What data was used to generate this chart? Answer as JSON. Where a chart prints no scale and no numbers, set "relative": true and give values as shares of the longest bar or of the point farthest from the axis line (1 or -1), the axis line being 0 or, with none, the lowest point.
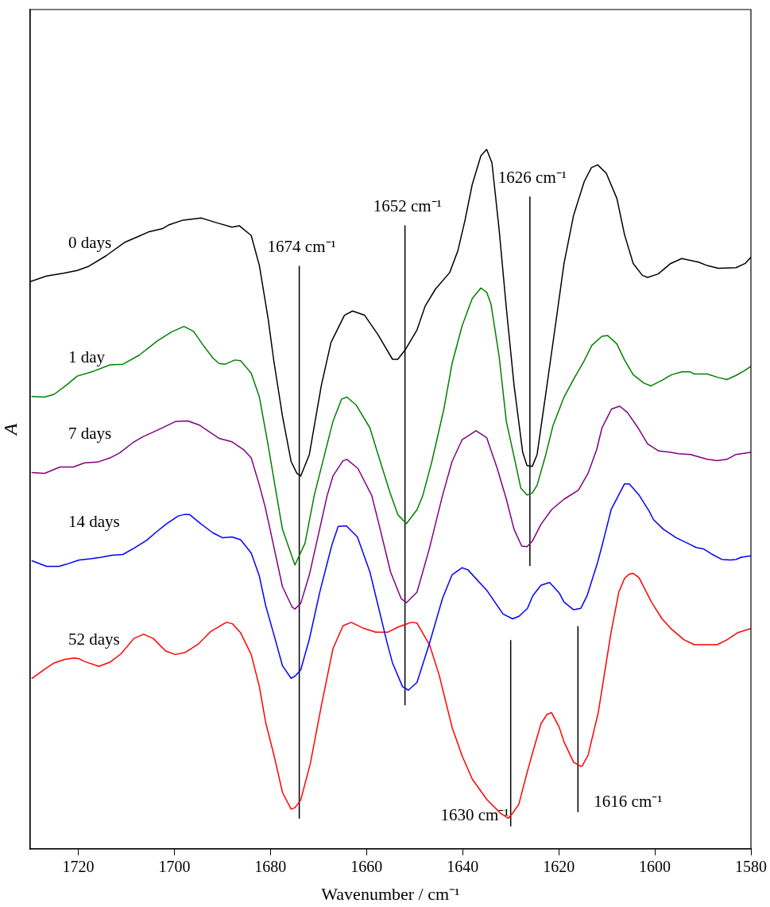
{
  "chart_data": {
    "type": "line",
    "relative": true,
    "xlabel": "Wavenumber / cm⁻¹",
    "ylabel": "A",
    "xlim": [
      1730,
      1580
    ],
    "xticks": [
      1720,
      1700,
      1680,
      1660,
      1640,
      1620,
      1600,
      1580
    ],
    "grid": false,
    "legend": false,
    "marker": "none",
    "annotations": [
      {
        "text": "1674 cm⁻¹",
        "x": 1674,
        "y": 0.833
      },
      {
        "text": "1652 cm⁻¹",
        "x": 1652,
        "y": 0.891
      },
      {
        "text": "1626 cm⁻¹",
        "x": 1626,
        "y": 0.932
      },
      {
        "text": "1630 cm⁻¹",
        "x": 1630,
        "y": 0.033
      },
      {
        "text": "1616 cm⁻¹",
        "x": 1616,
        "y": 0.053
      }
    ],
    "series": [
      {
        "name": "0 days",
        "color": "#000000",
        "x": [
          1730,
          1726.6,
          1723.1,
          1720.2,
          1717.8,
          1714.2,
          1710.4,
          1707.7,
          1705.4,
          1702.4,
          1701.2,
          1698.2,
          1694.4,
          1691.1,
          1688.0,
          1686.5,
          1684.0,
          1682.3,
          1680.5,
          1679.3,
          1677.5,
          1675.7,
          1674.5,
          1673.7,
          1671.9,
          1669.4,
          1667.4,
          1664.6,
          1662.9,
          1660.4,
          1657.6,
          1654.6,
          1653.5,
          1652.0,
          1649.5,
          1647.8,
          1645.7,
          1642.7,
          1641.0,
          1639.5,
          1638.0,
          1636.2,
          1635.0,
          1633.9,
          1632.4,
          1630.9,
          1629.3,
          1627.5,
          1626.6,
          1625.5,
          1624.5,
          1622.8,
          1620.7,
          1618.9,
          1616.9,
          1614.7,
          1613.2,
          1611.9,
          1610.1,
          1607.9,
          1606.3,
          1604.5,
          1602.6,
          1601.5,
          1599.3,
          1596.7,
          1594.4,
          1590.9,
          1589.1,
          1586.8,
          1583.1,
          1581.2,
          1580
        ],
        "values": [
          0.811,
          0.819,
          0.823,
          0.827,
          0.833,
          0.848,
          0.867,
          0.875,
          0.882,
          0.887,
          0.892,
          0.899,
          0.902,
          0.895,
          0.889,
          0.891,
          0.877,
          0.834,
          0.759,
          0.698,
          0.619,
          0.554,
          0.537,
          0.533,
          0.564,
          0.663,
          0.724,
          0.763,
          0.769,
          0.763,
          0.735,
          0.7,
          0.7,
          0.713,
          0.742,
          0.776,
          0.8,
          0.824,
          0.855,
          0.899,
          0.95,
          0.991,
          1.0,
          0.981,
          0.885,
          0.773,
          0.663,
          0.567,
          0.548,
          0.547,
          0.564,
          0.646,
          0.748,
          0.837,
          0.906,
          0.954,
          0.974,
          0.978,
          0.966,
          0.93,
          0.878,
          0.837,
          0.82,
          0.817,
          0.822,
          0.837,
          0.844,
          0.839,
          0.834,
          0.83,
          0.831,
          0.837,
          0.846
        ]
      },
      {
        "name": "1 day",
        "color": "#008000",
        "x": [
          1729.6,
          1727.0,
          1725.0,
          1722.5,
          1720.2,
          1717.2,
          1713.4,
          1710.7,
          1707.3,
          1703.6,
          1700.6,
          1698.0,
          1696.0,
          1694.2,
          1692.0,
          1690.7,
          1689.4,
          1687.4,
          1686.2,
          1684.0,
          1682.3,
          1680.5,
          1678.8,
          1677.5,
          1674.9,
          1672.8,
          1670.9,
          1667.0,
          1665.2,
          1664.1,
          1662.2,
          1659.3,
          1657.6,
          1655.1,
          1653.5,
          1651.7,
          1649.5,
          1648.3,
          1646.4,
          1643.9,
          1642.2,
          1640.1,
          1638.0,
          1636.2,
          1635.0,
          1634.1,
          1632.4,
          1630.9,
          1629.3,
          1627.9,
          1626.6,
          1625.5,
          1624.5,
          1622.8,
          1621.2,
          1618.9,
          1616.7,
          1614.7,
          1613.1,
          1611.0,
          1609.8,
          1607.9,
          1606.3,
          1604.5,
          1602.3,
          1600.8,
          1598.5,
          1596.5,
          1594.4,
          1592.6,
          1591.8,
          1589.1,
          1586.8,
          1585.0,
          1583.1,
          1581.5,
          1580
        ],
        "values": [
          0.647,
          0.646,
          0.65,
          0.663,
          0.676,
          0.682,
          0.692,
          0.693,
          0.706,
          0.726,
          0.739,
          0.747,
          0.74,
          0.722,
          0.702,
          0.694,
          0.693,
          0.699,
          0.698,
          0.68,
          0.646,
          0.578,
          0.509,
          0.457,
          0.406,
          0.437,
          0.505,
          0.611,
          0.643,
          0.646,
          0.635,
          0.602,
          0.564,
          0.509,
          0.478,
          0.465,
          0.485,
          0.505,
          0.554,
          0.629,
          0.694,
          0.748,
          0.787,
          0.802,
          0.796,
          0.779,
          0.704,
          0.611,
          0.561,
          0.516,
          0.506,
          0.509,
          0.52,
          0.561,
          0.605,
          0.646,
          0.674,
          0.698,
          0.72,
          0.733,
          0.734,
          0.722,
          0.699,
          0.678,
          0.666,
          0.662,
          0.67,
          0.678,
          0.682,
          0.682,
          0.679,
          0.679,
          0.674,
          0.671,
          0.677,
          0.683,
          0.69
        ]
      },
      {
        "name": "7 days",
        "color": "#800080",
        "x": [
          1729.6,
          1727.0,
          1723.8,
          1721.0,
          1718.7,
          1716.0,
          1713.4,
          1711.4,
          1708.6,
          1706.6,
          1702.8,
          1699.8,
          1697.2,
          1694.8,
          1690.7,
          1688.0,
          1685.6,
          1684.0,
          1682.3,
          1681.1,
          1680.3,
          1677.5,
          1675.5,
          1674.9,
          1673.7,
          1671.9,
          1668.2,
          1667.0,
          1664.9,
          1664.1,
          1661.8,
          1658.9,
          1657.3,
          1655.0,
          1652.8,
          1651.7,
          1649.5,
          1646.9,
          1644.2,
          1642.2,
          1640.1,
          1637.2,
          1635.0,
          1632.8,
          1630.9,
          1629.3,
          1627.7,
          1626.6,
          1625.5,
          1623.7,
          1621.5,
          1618.9,
          1615.9,
          1613.9,
          1612.1,
          1611.0,
          1609.0,
          1607.3,
          1605.7,
          1603.5,
          1601.5,
          1599.2,
          1596.7,
          1595.1,
          1592.6,
          1589.1,
          1587.0,
          1585.0,
          1583.1,
          1580
        ],
        "values": [
          0.538,
          0.537,
          0.546,
          0.546,
          0.552,
          0.553,
          0.559,
          0.566,
          0.581,
          0.589,
          0.601,
          0.611,
          0.612,
          0.606,
          0.587,
          0.582,
          0.571,
          0.559,
          0.52,
          0.489,
          0.464,
          0.375,
          0.346,
          0.343,
          0.351,
          0.392,
          0.505,
          0.533,
          0.555,
          0.557,
          0.544,
          0.505,
          0.461,
          0.396,
          0.358,
          0.352,
          0.367,
          0.43,
          0.505,
          0.554,
          0.585,
          0.598,
          0.588,
          0.544,
          0.5,
          0.457,
          0.433,
          0.432,
          0.44,
          0.464,
          0.485,
          0.5,
          0.513,
          0.537,
          0.571,
          0.602,
          0.629,
          0.633,
          0.624,
          0.602,
          0.579,
          0.569,
          0.567,
          0.565,
          0.564,
          0.557,
          0.555,
          0.557,
          0.564,
          0.567
        ]
      },
      {
        "name": "14 days",
        "color": "#0000ff",
        "x": [
          1729.6,
          1726.6,
          1724.0,
          1722.5,
          1719.8,
          1717.2,
          1715.2,
          1713.0,
          1710.7,
          1708.4,
          1705.8,
          1703.6,
          1701.6,
          1699.2,
          1698.0,
          1696.8,
          1694.5,
          1692.0,
          1690.0,
          1688.0,
          1686.2,
          1684.0,
          1682.3,
          1681.0,
          1679.3,
          1677.5,
          1675.7,
          1674.9,
          1673.7,
          1671.9,
          1669.7,
          1667.2,
          1665.9,
          1664.2,
          1661.9,
          1659.3,
          1657.6,
          1655.8,
          1654.6,
          1652.5,
          1651.3,
          1649.5,
          1646.9,
          1644.2,
          1642.2,
          1640.1,
          1638.9,
          1635.0,
          1631.6,
          1629.6,
          1628.2,
          1626.5,
          1625.4,
          1623.7,
          1621.9,
          1619.9,
          1618.9,
          1616.9,
          1615.4,
          1614.1,
          1611.9,
          1611.0,
          1609.1,
          1607.6,
          1606.3,
          1605.3,
          1603.3,
          1601.2,
          1600.3,
          1598.2,
          1595.6,
          1592.6,
          1591.4,
          1589.9,
          1588.0,
          1586.1,
          1584.3,
          1583.1,
          1582.0,
          1580
        ],
        "values": [
          0.412,
          0.404,
          0.404,
          0.407,
          0.413,
          0.415,
          0.417,
          0.42,
          0.421,
          0.43,
          0.441,
          0.454,
          0.465,
          0.476,
          0.478,
          0.478,
          0.465,
          0.452,
          0.445,
          0.446,
          0.442,
          0.423,
          0.39,
          0.348,
          0.307,
          0.262,
          0.244,
          0.247,
          0.256,
          0.3,
          0.368,
          0.435,
          0.461,
          0.462,
          0.446,
          0.396,
          0.348,
          0.297,
          0.266,
          0.232,
          0.227,
          0.238,
          0.294,
          0.358,
          0.392,
          0.402,
          0.399,
          0.37,
          0.336,
          0.329,
          0.333,
          0.344,
          0.362,
          0.377,
          0.381,
          0.366,
          0.353,
          0.342,
          0.344,
          0.362,
          0.41,
          0.433,
          0.485,
          0.505,
          0.522,
          0.522,
          0.506,
          0.483,
          0.471,
          0.457,
          0.445,
          0.435,
          0.431,
          0.429,
          0.421,
          0.414,
          0.413,
          0.414,
          0.417,
          0.419
        ]
      },
      {
        "name": "52 days",
        "color": "#ff0000",
        "x": [
          1729.6,
          1727.0,
          1725.0,
          1722.8,
          1720.8,
          1719.8,
          1718.7,
          1715.7,
          1713.4,
          1711.1,
          1708.4,
          1706.4,
          1704.4,
          1701.8,
          1699.8,
          1697.7,
          1695.0,
          1692.4,
          1689.2,
          1687.9,
          1686.2,
          1684.0,
          1682.3,
          1681.0,
          1679.3,
          1677.5,
          1675.7,
          1674.9,
          1673.7,
          1671.7,
          1669.4,
          1667.0,
          1664.9,
          1663.2,
          1660.8,
          1658.1,
          1655.5,
          1653.5,
          1650.7,
          1649.5,
          1646.9,
          1644.9,
          1642.2,
          1640.1,
          1638.0,
          1635.0,
          1632.1,
          1630.5,
          1629.6,
          1628.3,
          1626.6,
          1625.5,
          1623.7,
          1622.5,
          1621.5,
          1619.9,
          1618.9,
          1616.9,
          1615.4,
          1615.1,
          1613.9,
          1611.8,
          1609.1,
          1607.5,
          1606.3,
          1605.3,
          1604.5,
          1603.3,
          1600.7,
          1598.5,
          1596.5,
          1593.9,
          1591.8,
          1587.0,
          1585.0,
          1582.8,
          1580
        ],
        "values": [
          0.244,
          0.257,
          0.266,
          0.271,
          0.273,
          0.272,
          0.268,
          0.261,
          0.267,
          0.279,
          0.301,
          0.307,
          0.301,
          0.283,
          0.278,
          0.281,
          0.293,
          0.311,
          0.324,
          0.322,
          0.309,
          0.278,
          0.232,
          0.181,
          0.135,
          0.081,
          0.057,
          0.059,
          0.07,
          0.122,
          0.205,
          0.286,
          0.319,
          0.324,
          0.316,
          0.31,
          0.31,
          0.317,
          0.324,
          0.323,
          0.292,
          0.249,
          0.174,
          0.133,
          0.1,
          0.071,
          0.051,
          0.044,
          0.051,
          0.064,
          0.109,
          0.136,
          0.179,
          0.192,
          0.195,
          0.174,
          0.153,
          0.124,
          0.118,
          0.119,
          0.134,
          0.194,
          0.31,
          0.367,
          0.387,
          0.393,
          0.394,
          0.388,
          0.353,
          0.329,
          0.314,
          0.299,
          0.292,
          0.292,
          0.299,
          0.309,
          0.315
        ]
      },
      {
        "type": "line",
        "color": "#000000",
        "x": [
          1674,
          1674
        ],
        "values": [
          0.833,
          0.044
        ]
      },
      {
        "type": "line",
        "color": "#000000",
        "x": [
          1652,
          1652
        ],
        "values": [
          0.891,
          0.206
        ]
      },
      {
        "type": "line",
        "color": "#000000",
        "x": [
          1626,
          1626
        ],
        "values": [
          0.932,
          0.405
        ]
      },
      {
        "type": "line",
        "color": "#000000",
        "x": [
          1630,
          1630
        ],
        "values": [
          0.298,
          0.033
        ]
      },
      {
        "type": "line",
        "color": "#000000",
        "x": [
          1616,
          1616
        ],
        "values": [
          0.318,
          0.053
        ]
      }
    ]
  }
}
